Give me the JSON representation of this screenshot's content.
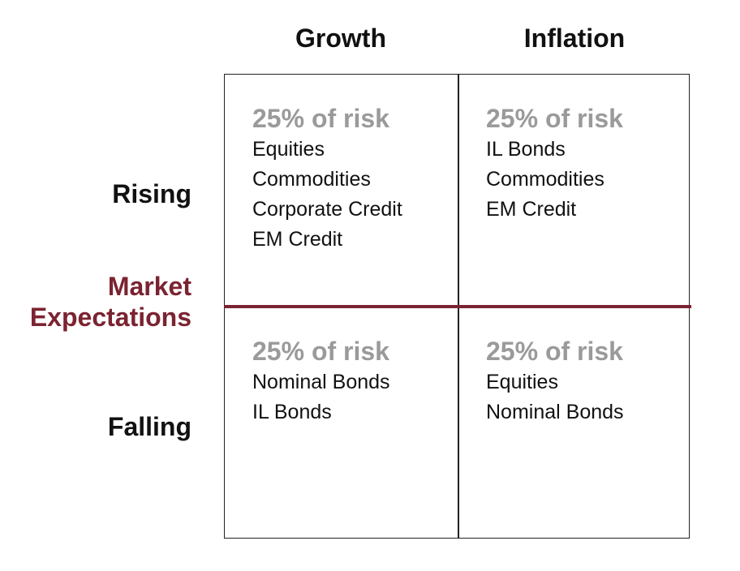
{
  "columns": [
    {
      "label": "Growth"
    },
    {
      "label": "Inflation"
    }
  ],
  "rows": {
    "rising": "Rising",
    "falling": "Falling",
    "axis_label_line1": "Market",
    "axis_label_line2": "Expectations"
  },
  "colors": {
    "accent": "#7b2331",
    "risk_text": "#9a9a9a",
    "border": "#222222"
  },
  "cells": {
    "growth_rising": {
      "risk": "25% of risk",
      "assets": [
        "Equities",
        "Commodities",
        "Corporate Credit",
        "EM Credit"
      ]
    },
    "inflation_rising": {
      "risk": "25% of risk",
      "assets": [
        "IL Bonds",
        "Commodities",
        "EM Credit"
      ]
    },
    "growth_falling": {
      "risk": "25% of risk",
      "assets": [
        "Nominal Bonds",
        "IL Bonds"
      ]
    },
    "inflation_falling": {
      "risk": "25% of risk",
      "assets": [
        "Equities",
        "Nominal Bonds"
      ]
    }
  }
}
